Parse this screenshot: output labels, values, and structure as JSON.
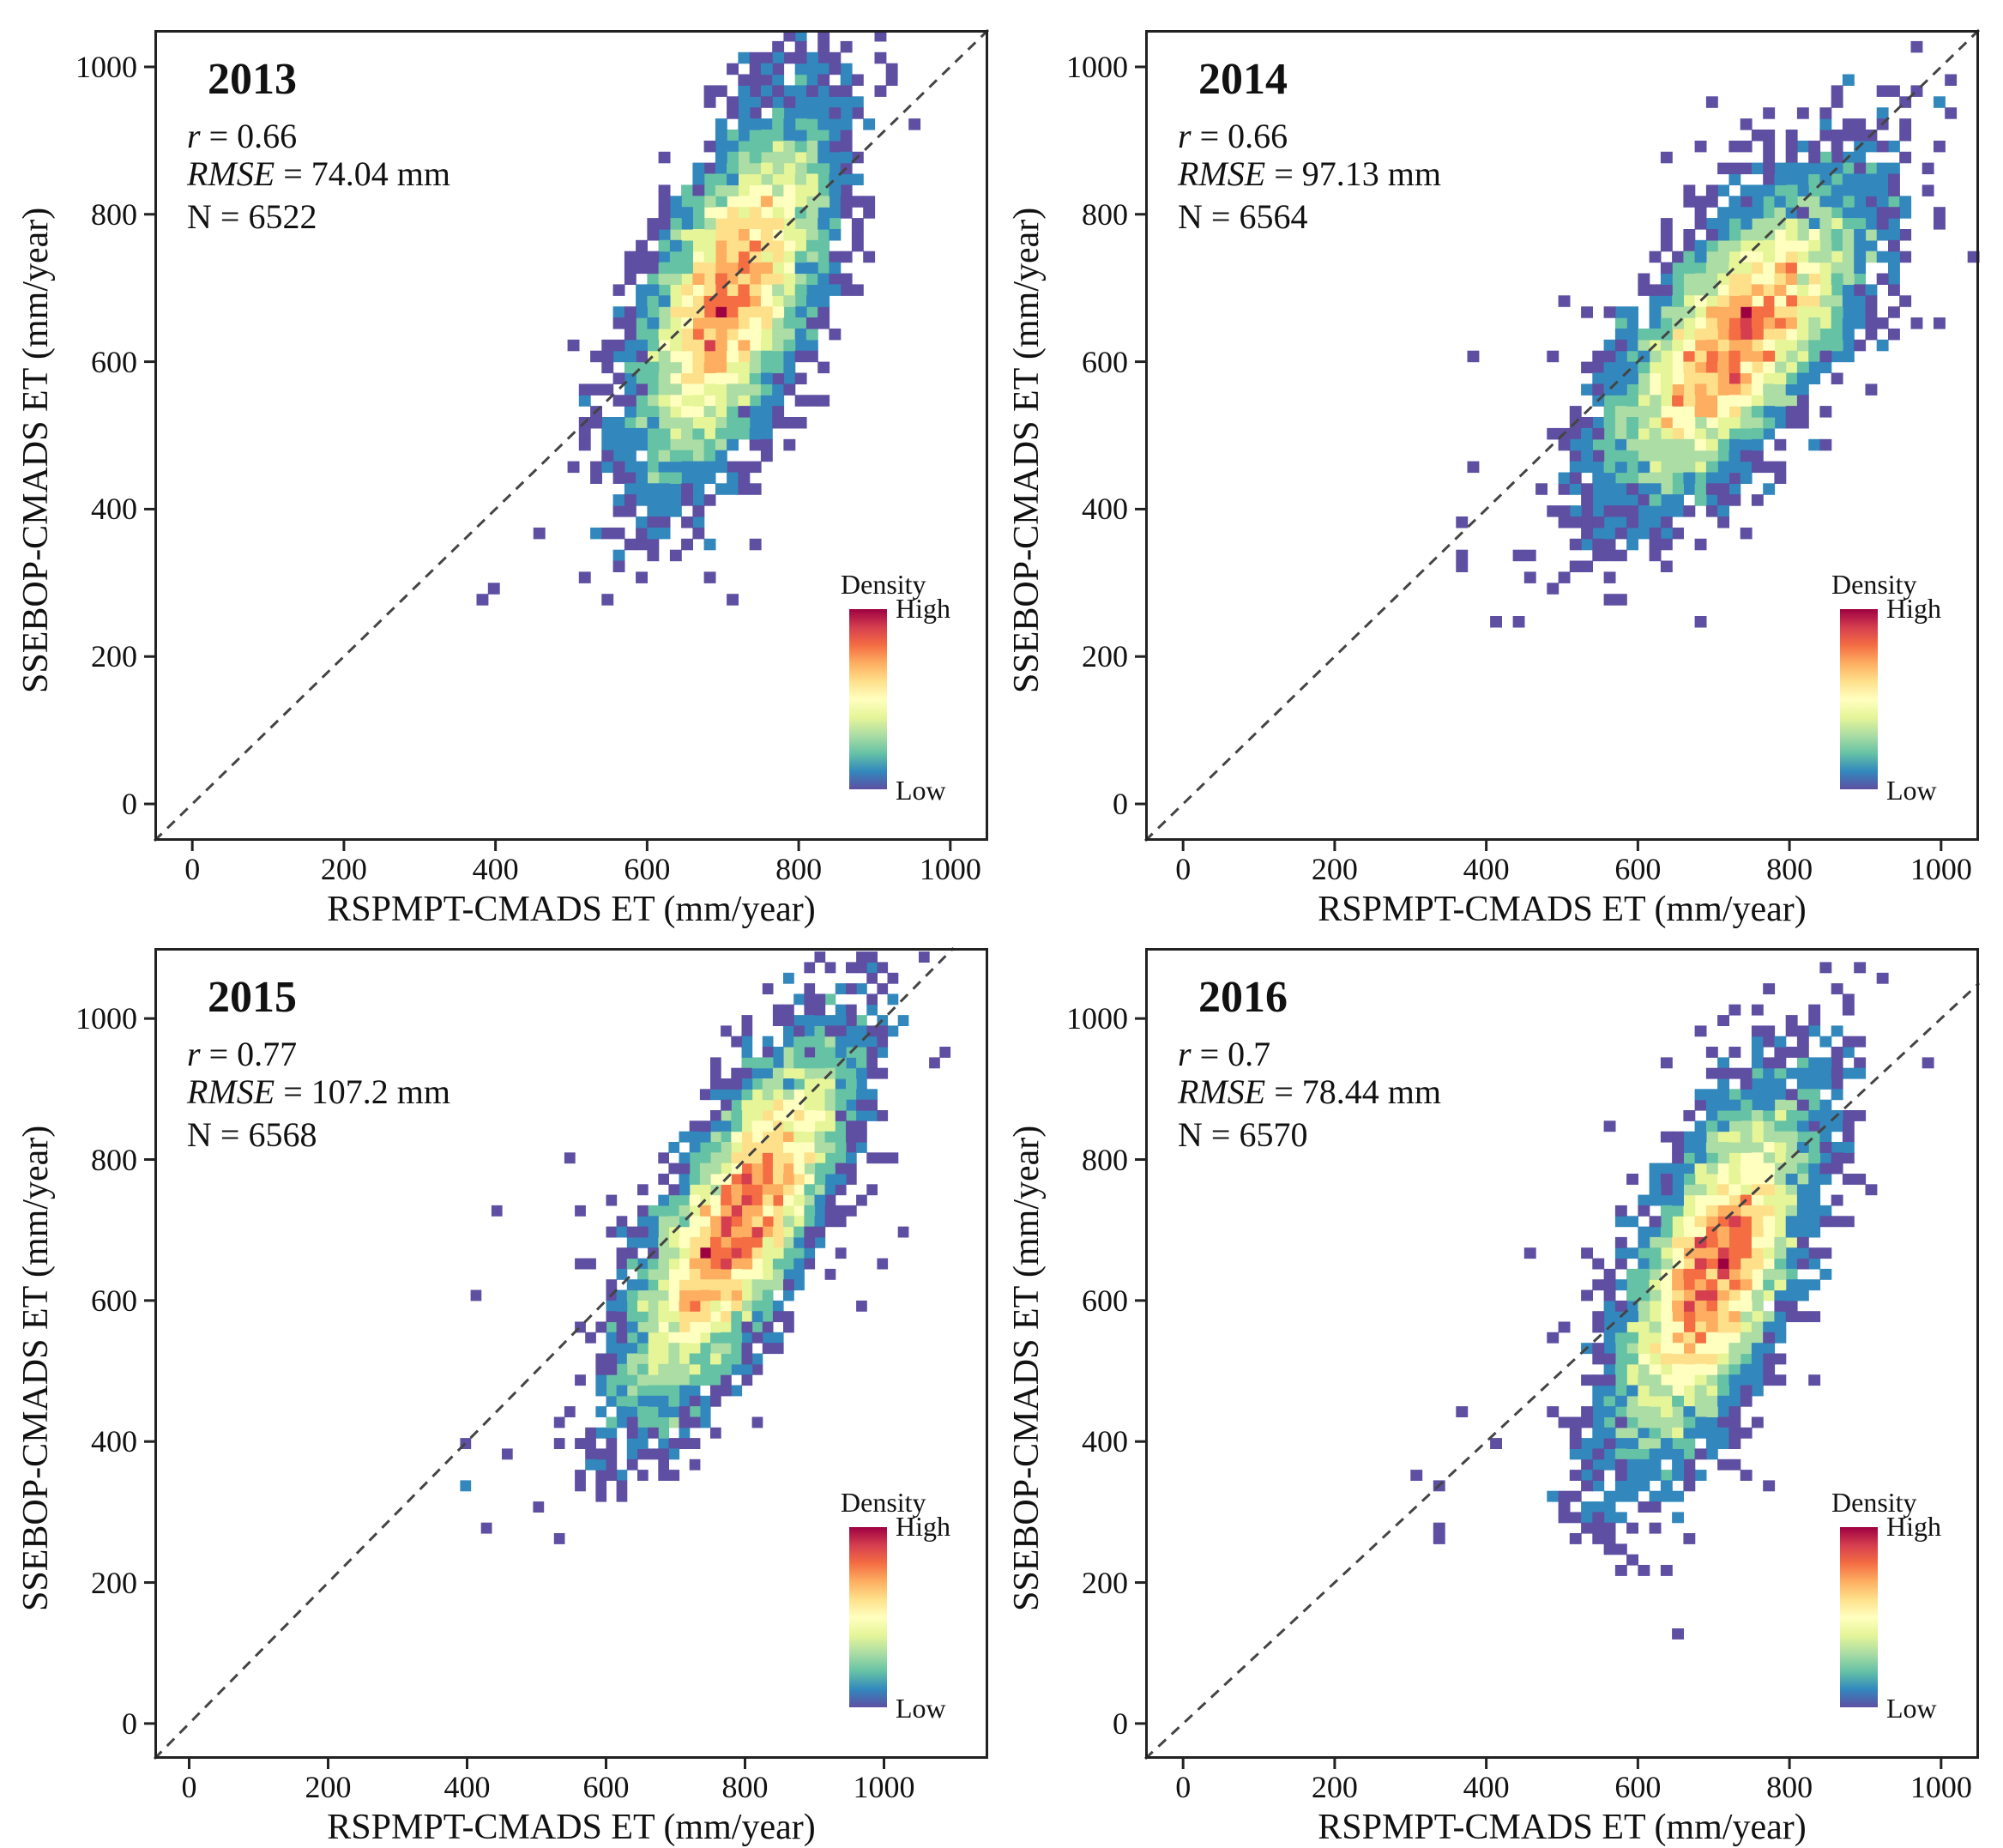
{
  "chart_data": [
    {
      "type": "heatmap",
      "subtype": "density scatter",
      "title": "2013",
      "stats": {
        "r_label": "r",
        "r_value": "= 0.66",
        "rmse_label": "RMSE",
        "rmse_value": "= 74.04 mm",
        "n": "N = 6522"
      },
      "xlabel": "RSPMPT-CMADS ET (mm/year)",
      "ylabel": "SSEBOP-CMADS ET (mm/year)",
      "xlim": [
        -50,
        1050
      ],
      "ylim": [
        -50,
        1050
      ],
      "xticks": [
        "0",
        "200",
        "400",
        "600",
        "800",
        "1000"
      ],
      "yticks": [
        "0",
        "200",
        "400",
        "600",
        "800",
        "1000"
      ],
      "legend": {
        "title": "Density",
        "high": "High",
        "low": "Low",
        "position": "bottom-right"
      },
      "cluster": {
        "mean_x": 710,
        "mean_y": 690,
        "sd_major": 125,
        "sd_minor": 45,
        "angle_deg": 70,
        "n_points": 6522
      },
      "outliers": [
        [
          380,
          270
        ],
        [
          395,
          295
        ],
        [
          560,
          650
        ],
        [
          600,
          340
        ],
        [
          640,
          600
        ],
        [
          650,
          560
        ],
        [
          820,
          600
        ],
        [
          760,
          470
        ],
        [
          870,
          850
        ]
      ]
    },
    {
      "type": "heatmap",
      "subtype": "density scatter",
      "title": "2014",
      "stats": {
        "r_label": "r",
        "r_value": "= 0.66",
        "rmse_label": "RMSE",
        "rmse_value": "= 97.13 mm",
        "n": "N = 6564"
      },
      "xlabel": "RSPMPT-CMADS ET (mm/year)",
      "ylabel": "SSEBOP-CMADS ET (mm/year)",
      "xlim": [
        -50,
        1050
      ],
      "ylim": [
        -50,
        1050
      ],
      "xticks": [
        "0",
        "200",
        "400",
        "600",
        "800",
        "1000"
      ],
      "yticks": [
        "0",
        "200",
        "400",
        "600",
        "800",
        "1000"
      ],
      "legend": {
        "title": "Density",
        "high": "High",
        "low": "Low",
        "position": "bottom-right"
      },
      "cluster": {
        "mean_x": 730,
        "mean_y": 630,
        "sd_major": 120,
        "sd_minor": 50,
        "angle_deg": 55,
        "n_points": 6564
      },
      "outliers": [
        [
          690,
          945
        ],
        [
          720,
          890
        ],
        [
          640,
          880
        ],
        [
          380,
          600
        ],
        [
          380,
          460
        ],
        [
          370,
          380
        ],
        [
          360,
          340
        ],
        [
          360,
          320
        ],
        [
          410,
          245
        ],
        [
          450,
          305
        ],
        [
          500,
          680
        ],
        [
          530,
          660
        ],
        [
          560,
          620
        ],
        [
          550,
          490
        ],
        [
          900,
          800
        ],
        [
          930,
          830
        ],
        [
          940,
          720
        ],
        [
          1000,
          650
        ]
      ]
    },
    {
      "type": "heatmap",
      "subtype": "density scatter",
      "title": "2015",
      "stats": {
        "r_label": "r",
        "r_value": "= 0.77",
        "rmse_label": "RMSE",
        "rmse_value": "= 107.2 mm",
        "n": "N = 6568"
      },
      "xlabel": "RSPMPT-CMADS ET (mm/year)",
      "ylabel": "SSEBOP-CMADS ET (mm/year)",
      "xlim": [
        -50,
        1150
      ],
      "ylim": [
        -50,
        1100
      ],
      "xticks": [
        "0",
        "200",
        "400",
        "600",
        "800",
        "1000"
      ],
      "yticks": [
        "0",
        "200",
        "400",
        "600",
        "800",
        "1000"
      ],
      "legend": {
        "title": "Density",
        "high": "High",
        "low": "Low",
        "position": "bottom-right"
      },
      "cluster": {
        "mean_x": 790,
        "mean_y": 710,
        "sd_major": 140,
        "sd_minor": 45,
        "angle_deg": 62,
        "n_points": 6568
      },
      "outliers": [
        [
          390,
          330
        ],
        [
          390,
          340
        ],
        [
          400,
          400
        ],
        [
          410,
          610
        ],
        [
          420,
          280
        ],
        [
          440,
          720
        ],
        [
          460,
          380
        ],
        [
          550,
          800
        ],
        [
          560,
          650
        ],
        [
          580,
          650
        ],
        [
          960,
          590
        ],
        [
          1000,
          650
        ],
        [
          1030,
          700
        ],
        [
          1010,
          980
        ],
        [
          980,
          760
        ],
        [
          920,
          970
        ]
      ]
    },
    {
      "type": "heatmap",
      "subtype": "density scatter",
      "title": "2016",
      "stats": {
        "r_label": "r",
        "r_value": "= 0.7",
        "rmse_label": "RMSE",
        "rmse_value": "= 78.44 mm",
        "n": "N = 6570"
      },
      "xlabel": "RSPMPT-CMADS ET (mm/year)",
      "ylabel": "SSEBOP-CMADS ET (mm/year)",
      "xlim": [
        -50,
        1050
      ],
      "ylim": [
        -50,
        1100
      ],
      "xticks": [
        "0",
        "200",
        "400",
        "600",
        "800",
        "1000"
      ],
      "yticks": [
        "0",
        "200",
        "400",
        "600",
        "800",
        "1000"
      ],
      "legend": {
        "title": "Density",
        "high": "High",
        "low": "Low",
        "position": "bottom-right"
      },
      "cluster": {
        "mean_x": 700,
        "mean_y": 640,
        "sd_major": 130,
        "sd_minor": 45,
        "angle_deg": 70,
        "n_points": 6570
      },
      "outliers": [
        [
          310,
          350
        ],
        [
          340,
          330
        ],
        [
          340,
          280
        ],
        [
          340,
          260
        ],
        [
          370,
          440
        ],
        [
          410,
          390
        ],
        [
          460,
          670
        ],
        [
          490,
          540
        ],
        [
          500,
          560
        ],
        [
          510,
          420
        ],
        [
          560,
          840
        ],
        [
          680,
          980
        ],
        [
          880,
          840
        ],
        [
          900,
          760
        ],
        [
          850,
          640
        ]
      ]
    }
  ]
}
